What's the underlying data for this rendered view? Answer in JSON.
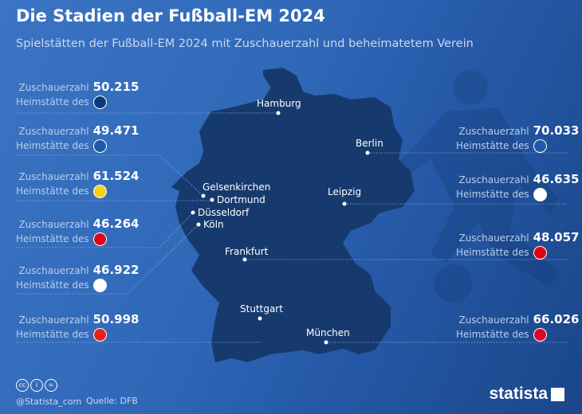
{
  "title": "Die Stadien der Fußball-EM 2024",
  "subtitle": "Spielstätten der Fußball-EM 2024 mit Zuschauerzahl und beheimatetem Verein",
  "labels": {
    "capacity": "Zuschauerzahl",
    "home": "Heimstätte des"
  },
  "cities": [
    "Hamburg",
    "Berlin",
    "Gelsenkirchen",
    "Dortmund",
    "Düsseldorf",
    "Köln",
    "Leipzig",
    "Frankfurt",
    "Stuttgart",
    "München"
  ],
  "left_panels": [
    {
      "value": "50.215",
      "club_icon": "hsv-logo",
      "color": "#0a3a7a"
    },
    {
      "value": "49.471",
      "club_icon": "schalke-logo",
      "color": "#1d5aa8"
    },
    {
      "value": "61.524",
      "club_icon": "bvb-logo",
      "color": "#f7d116"
    },
    {
      "value": "46.264",
      "club_icon": "fortuna-duesseldorf-logo",
      "color": "#e2001a"
    },
    {
      "value": "46.922",
      "club_icon": "fc-koeln-logo",
      "color": "#ffffff"
    },
    {
      "value": "50.998",
      "club_icon": "vfb-stuttgart-logo",
      "color": "#e32219"
    }
  ],
  "right_panels": [
    {
      "value": "70.033",
      "club_icon": "hertha-logo",
      "color": "#1e5aa8"
    },
    {
      "value": "46.635",
      "club_icon": "rb-leipzig-logo",
      "color": "#ffffff"
    },
    {
      "value": "48.057",
      "club_icon": "eintracht-frankfurt-logo",
      "color": "#e1000f"
    },
    {
      "value": "66.026",
      "club_icon": "fc-bayern-logo",
      "color": "#dc052d"
    }
  ],
  "footer": {
    "handle": "@Statista_com",
    "source": "Quelle: DFB",
    "brand": "statista"
  },
  "colors": {
    "map": "#173a6e",
    "accent": "#ffffff"
  }
}
